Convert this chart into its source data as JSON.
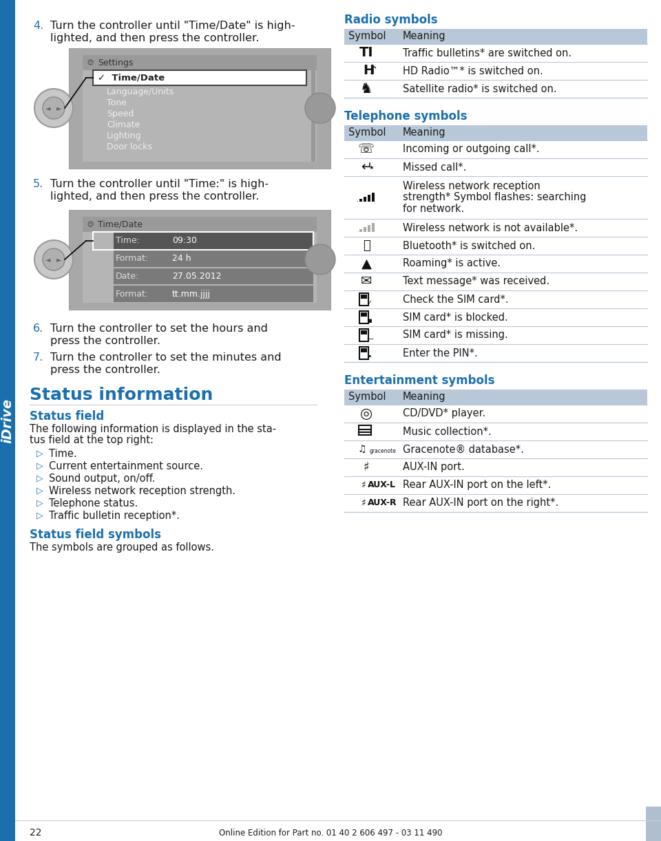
{
  "page_bg": "#ffffff",
  "blue_heading": "#1a6faf",
  "blue_sidebar": "#1a6faf",
  "table_header_bg": "#b8c8d8",
  "table_row_divider": "#b8c8d8",
  "text_color": "#1a1a1a",
  "footer_text": "Online Edition for Part no. 01 40 2 606 497 - 03 11 490",
  "page_number": "22",
  "idrive_text": "iDrive",
  "col_symbol": "Symbol",
  "col_meaning": "Meaning",
  "radio_symbols_title": "Radio symbols",
  "telephone_symbols_title": "Telephone symbols",
  "entertainment_symbols_title": "Entertainment symbols",
  "status_info_title": "Status information",
  "status_field_title": "Status field",
  "status_field_symbols_title": "Status field symbols",
  "status_field_symbols_body": "The symbols are grouped as follows.",
  "bullet_items": [
    "Time.",
    "Current entertainment source.",
    "Sound output, on/off.",
    "Wireless network reception strength.",
    "Telephone status.",
    "Traffic bulletin reception*."
  ],
  "radio_rows": [
    {
      "symbol": "TI",
      "meaning": "Traffic bulletins* are switched on.",
      "symbol_type": "ti"
    },
    {
      "symbol": "HD",
      "meaning": "HD Radio™* is switched on.",
      "symbol_type": "hd"
    },
    {
      "symbol": "sat",
      "meaning": "Satellite radio* is switched on.",
      "symbol_type": "sat"
    }
  ],
  "telephone_rows": [
    {
      "symbol": "phone",
      "meaning": "Incoming or outgoing call*.",
      "symbol_type": "phone"
    },
    {
      "symbol": "missed",
      "meaning": "Missed call*.",
      "symbol_type": "missed"
    },
    {
      "symbol": "bars_full",
      "meaning": "Wireless network reception\nstrength* Symbol flashes: searching\nfor network.",
      "symbol_type": "bars_full"
    },
    {
      "symbol": "bars_gray",
      "meaning": "Wireless network is not available*.",
      "symbol_type": "bars_gray"
    },
    {
      "symbol": "bt",
      "meaning": "Bluetooth* is switched on.",
      "symbol_type": "bt"
    },
    {
      "symbol": "roam",
      "meaning": "Roaming* is active.",
      "symbol_type": "roam"
    },
    {
      "symbol": "msg",
      "meaning": "Text message* was received.",
      "symbol_type": "msg"
    },
    {
      "symbol": "sim_chk",
      "meaning": "Check the SIM card*.",
      "symbol_type": "sim_chk"
    },
    {
      "symbol": "sim_blk",
      "meaning": "SIM card* is blocked.",
      "symbol_type": "sim_blk"
    },
    {
      "symbol": "sim_mis",
      "meaning": "SIM card* is missing.",
      "symbol_type": "sim_mis"
    },
    {
      "symbol": "pin",
      "meaning": "Enter the PIN*.",
      "symbol_type": "pin"
    }
  ],
  "entertainment_rows": [
    {
      "symbol": "cd",
      "meaning": "CD/DVD* player.",
      "symbol_type": "cd"
    },
    {
      "symbol": "music",
      "meaning": "Music collection*.",
      "symbol_type": "music"
    },
    {
      "symbol": "grace",
      "meaning": "Gracenote® database*.",
      "symbol_type": "grace"
    },
    {
      "symbol": "aux",
      "meaning": "AUX-IN port.",
      "symbol_type": "aux"
    },
    {
      "symbol": "aux_l",
      "meaning": "Rear AUX-IN port on the left*.",
      "symbol_type": "aux_l"
    },
    {
      "symbol": "aux_r",
      "meaning": "Rear AUX-IN port on the right*.",
      "symbol_type": "aux_r"
    }
  ]
}
